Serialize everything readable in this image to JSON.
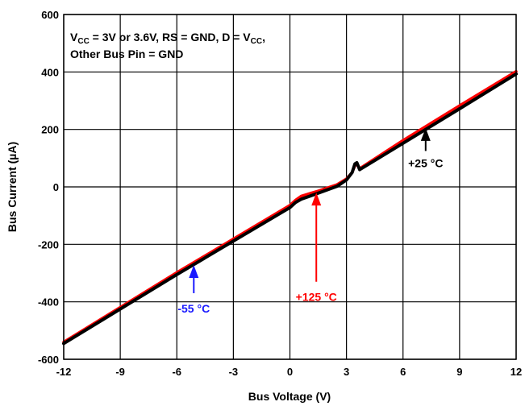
{
  "chart_data": {
    "type": "line",
    "xlabel": "Bus Voltage (V)",
    "ylabel": "Bus Current (µA)",
    "xlim": [
      -12,
      12
    ],
    "ylim": [
      -600,
      600
    ],
    "xticks": [
      "-12",
      "-9",
      "-6",
      "-3",
      "0",
      "3",
      "6",
      "9",
      "12"
    ],
    "yticks": [
      "600",
      "400",
      "200",
      "0",
      "-200",
      "-400",
      "-600"
    ],
    "grid": true,
    "condition": {
      "line1": {
        "v": "V",
        "cc": "CC",
        "rest1": " = 3V or 3.6V, RS = GND, D = V",
        "cc2": "CC",
        "rest2": ","
      },
      "line2": "Other Bus Pin = GND"
    },
    "series": [
      {
        "name": "-55 °C",
        "color": "#1a1aff",
        "x": [
          -12,
          -6,
          0,
          0.3,
          0.6,
          1.5,
          2.5,
          3.0,
          3.3,
          3.45,
          3.55,
          3.7,
          6,
          9,
          12
        ],
        "y": [
          -545,
          -305,
          -72,
          -52,
          -42,
          -20,
          4,
          25,
          48,
          74,
          78,
          62,
          155,
          275,
          397
        ]
      },
      {
        "name": "+125 °C",
        "color": "#ff0000",
        "x": [
          -12,
          -6,
          0,
          0.3,
          0.6,
          1.5,
          2.5,
          3.0,
          3.3,
          3.45,
          3.55,
          3.7,
          6,
          9,
          12
        ],
        "y": [
          -540,
          -298,
          -64,
          -46,
          -32,
          -14,
          8,
          28,
          50,
          74,
          80,
          64,
          162,
          283,
          402
        ]
      },
      {
        "name": "+25 °C",
        "color": "#000000",
        "x": [
          -12,
          -6,
          0,
          0.3,
          0.6,
          1.5,
          2.5,
          3.0,
          3.3,
          3.45,
          3.55,
          3.7,
          6,
          9,
          12
        ],
        "y": [
          -545,
          -305,
          -72,
          -54,
          -43,
          -22,
          2,
          24,
          50,
          80,
          84,
          60,
          152,
          272,
          393
        ]
      }
    ],
    "annotations": [
      {
        "text": "-55 °C",
        "color": "#1a1aff",
        "arrow_from": [
          -5.1,
          -370
        ],
        "arrow_to": [
          -5.1,
          -272
        ]
      },
      {
        "text": "+125 °C",
        "color": "#ff0000",
        "arrow_from": [
          1.4,
          -330
        ],
        "arrow_to": [
          1.4,
          -20
        ]
      },
      {
        "text": "+25 °C",
        "color": "#000000",
        "arrow_from": [
          7.2,
          125
        ],
        "arrow_to": [
          7.2,
          205
        ]
      }
    ]
  }
}
